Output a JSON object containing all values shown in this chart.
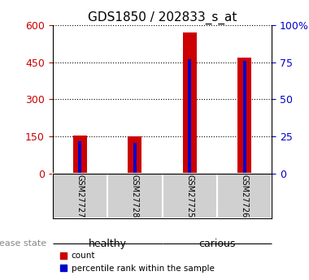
{
  "title": "GDS1850 / 202833_s_at",
  "samples": [
    "GSM27727",
    "GSM27728",
    "GSM27725",
    "GSM27726"
  ],
  "groups": [
    "healthy",
    "healthy",
    "carious",
    "carious"
  ],
  "count_values": [
    155,
    152,
    570,
    470
  ],
  "percentile_values": [
    22,
    21,
    77,
    76
  ],
  "left_yticks": [
    0,
    150,
    300,
    450,
    600
  ],
  "right_yticks": [
    0,
    25,
    50,
    75,
    100
  ],
  "right_ylabels": [
    "0",
    "25",
    "50",
    "75",
    "100%"
  ],
  "bar_color_red": "#CC0000",
  "bar_color_blue": "#0000CC",
  "bar_width": 0.25,
  "blue_bar_width": 0.06,
  "bg_color": "#FFFFFF",
  "tick_label_color_left": "#CC0000",
  "tick_label_color_right": "#0000CC",
  "healthy_color": "#C8F5C8",
  "carious_color": "#66EE66",
  "sample_box_color": "#D0D0D0",
  "disease_state_label": "disease state",
  "legend_count": "count",
  "legend_percentile": "percentile rank within the sample",
  "count_max": 600,
  "pct_max": 100
}
